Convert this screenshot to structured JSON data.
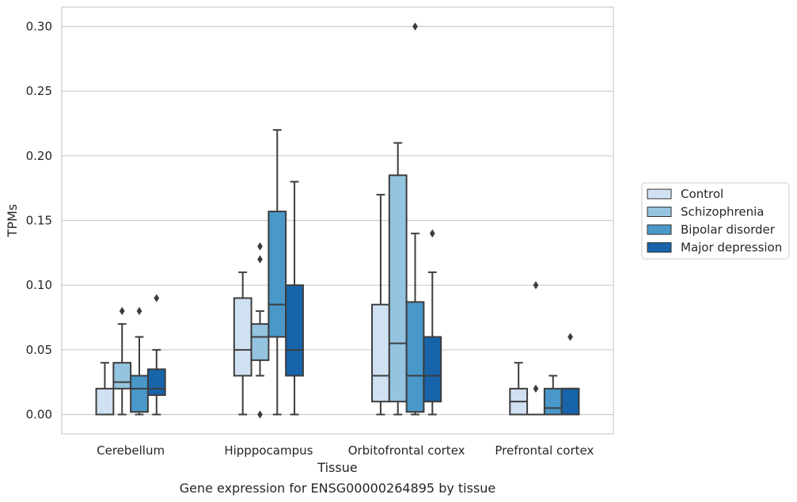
{
  "chart_data": {
    "type": "box",
    "title": "",
    "caption": "Gene expression for ENSG00000264895 by tissue",
    "xlabel": "Tissue",
    "ylabel": "TPMs",
    "ylim": [
      -0.015,
      0.315
    ],
    "yticks": [
      "0.00",
      "0.05",
      "0.10",
      "0.15",
      "0.20",
      "0.25",
      "0.30"
    ],
    "grid": true,
    "legend_position": "right",
    "categories": [
      "Cerebellum",
      "Hipppocampus",
      "Orbitofrontal cortex",
      "Prefrontal cortex"
    ],
    "series": [
      {
        "name": "Control",
        "color": "#d0e1f2",
        "boxes": [
          {
            "whislo": 0.0,
            "q1": 0.0,
            "med": 0.0,
            "q3": 0.02,
            "whishi": 0.04,
            "fliers": []
          },
          {
            "whislo": 0.0,
            "q1": 0.03,
            "med": 0.05,
            "q3": 0.09,
            "whishi": 0.11,
            "fliers": []
          },
          {
            "whislo": 0.0,
            "q1": 0.01,
            "med": 0.03,
            "q3": 0.085,
            "whishi": 0.17,
            "fliers": []
          },
          {
            "whislo": 0.0,
            "q1": 0.0,
            "med": 0.01,
            "q3": 0.02,
            "whishi": 0.04,
            "fliers": []
          }
        ]
      },
      {
        "name": "Schizophrenia",
        "color": "#94c4df",
        "boxes": [
          {
            "whislo": 0.0,
            "q1": 0.02,
            "med": 0.025,
            "q3": 0.04,
            "whishi": 0.07,
            "fliers": [
              0.08
            ]
          },
          {
            "whislo": 0.03,
            "q1": 0.042,
            "med": 0.06,
            "q3": 0.07,
            "whishi": 0.08,
            "fliers": [
              0.0,
              0.12,
              0.13
            ]
          },
          {
            "whislo": 0.0,
            "q1": 0.01,
            "med": 0.055,
            "q3": 0.185,
            "whishi": 0.21,
            "fliers": []
          },
          {
            "whislo": 0.0,
            "q1": 0.0,
            "med": 0.0,
            "q3": 0.0,
            "whishi": 0.0,
            "fliers": [
              0.02,
              0.1
            ]
          }
        ]
      },
      {
        "name": "Bipolar disorder",
        "color": "#4a98c9",
        "boxes": [
          {
            "whislo": 0.0,
            "q1": 0.002,
            "med": 0.02,
            "q3": 0.03,
            "whishi": 0.06,
            "fliers": [
              0.08
            ]
          },
          {
            "whislo": 0.0,
            "q1": 0.06,
            "med": 0.085,
            "q3": 0.157,
            "whishi": 0.22,
            "fliers": []
          },
          {
            "whislo": 0.0,
            "q1": 0.002,
            "med": 0.03,
            "q3": 0.087,
            "whishi": 0.14,
            "fliers": [
              0.3
            ]
          },
          {
            "whislo": 0.0,
            "q1": 0.0,
            "med": 0.005,
            "q3": 0.02,
            "whishi": 0.03,
            "fliers": []
          }
        ]
      },
      {
        "name": "Major depression",
        "color": "#1764ab",
        "boxes": [
          {
            "whislo": 0.0,
            "q1": 0.015,
            "med": 0.02,
            "q3": 0.035,
            "whishi": 0.05,
            "fliers": [
              0.09
            ]
          },
          {
            "whislo": 0.0,
            "q1": 0.03,
            "med": 0.05,
            "q3": 0.1,
            "whishi": 0.18,
            "fliers": []
          },
          {
            "whislo": 0.0,
            "q1": 0.01,
            "med": 0.03,
            "q3": 0.06,
            "whishi": 0.11,
            "fliers": [
              0.14
            ]
          },
          {
            "whislo": 0.0,
            "q1": 0.0,
            "med": 0.02,
            "q3": 0.02,
            "whishi": 0.02,
            "fliers": [
              0.06
            ]
          }
        ]
      }
    ]
  }
}
